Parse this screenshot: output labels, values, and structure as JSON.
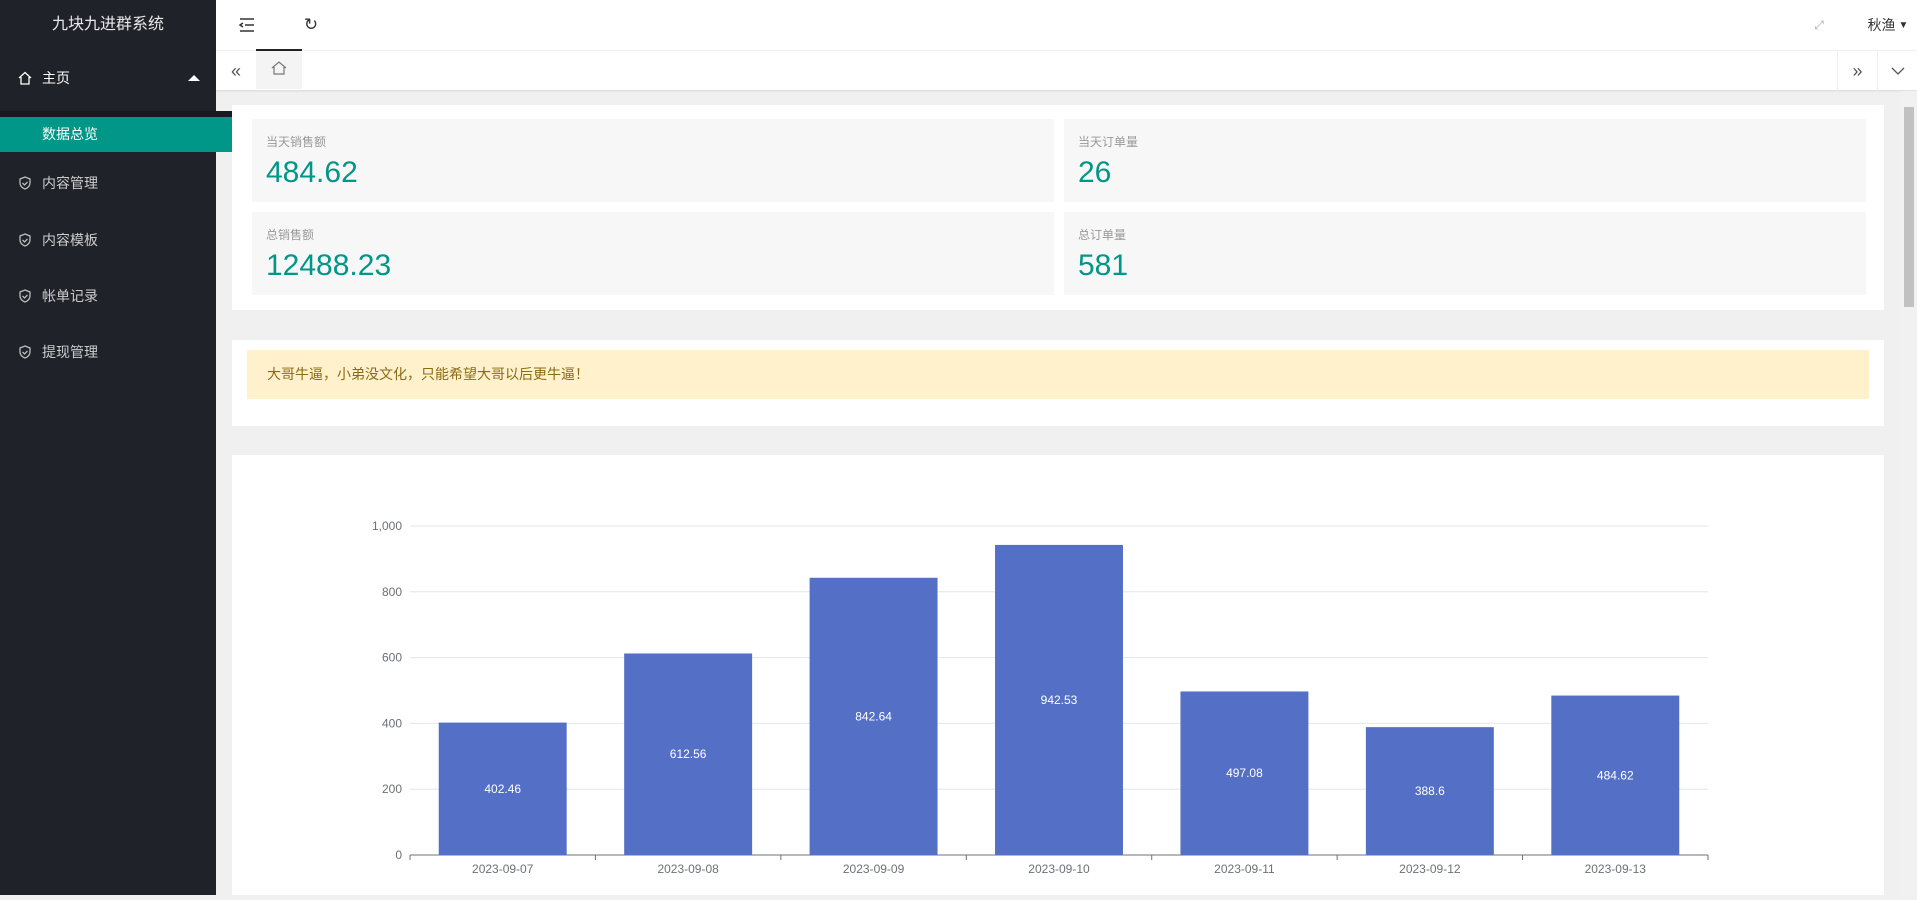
{
  "app": {
    "title": "九块九进群系统",
    "user": "秋渔"
  },
  "sidebar": {
    "home": {
      "label": "主页",
      "sub": "数据总览"
    },
    "items": [
      {
        "label": "内容管理"
      },
      {
        "label": "内容模板"
      },
      {
        "label": "帐单记录"
      },
      {
        "label": "提现管理"
      }
    ]
  },
  "stats": [
    {
      "label": "当天销售额",
      "value": "484.62"
    },
    {
      "label": "当天订单量",
      "value": "26"
    },
    {
      "label": "总销售额",
      "value": "12488.23"
    },
    {
      "label": "总订单量",
      "value": "581"
    }
  ],
  "notice": "大哥牛逼，小弟没文化，只能希望大哥以后更牛逼！",
  "chart_data": {
    "type": "bar",
    "categories": [
      "2023-09-07",
      "2023-09-08",
      "2023-09-09",
      "2023-09-10",
      "2023-09-11",
      "2023-09-12",
      "2023-09-13"
    ],
    "values": [
      402.46,
      612.56,
      842.64,
      942.53,
      497.08,
      388.6,
      484.62
    ],
    "ylim": [
      0,
      1000
    ],
    "yticks": [
      "0",
      "200",
      "400",
      "600",
      "800",
      "1,000"
    ],
    "grid": true,
    "color": "#5470c6"
  }
}
